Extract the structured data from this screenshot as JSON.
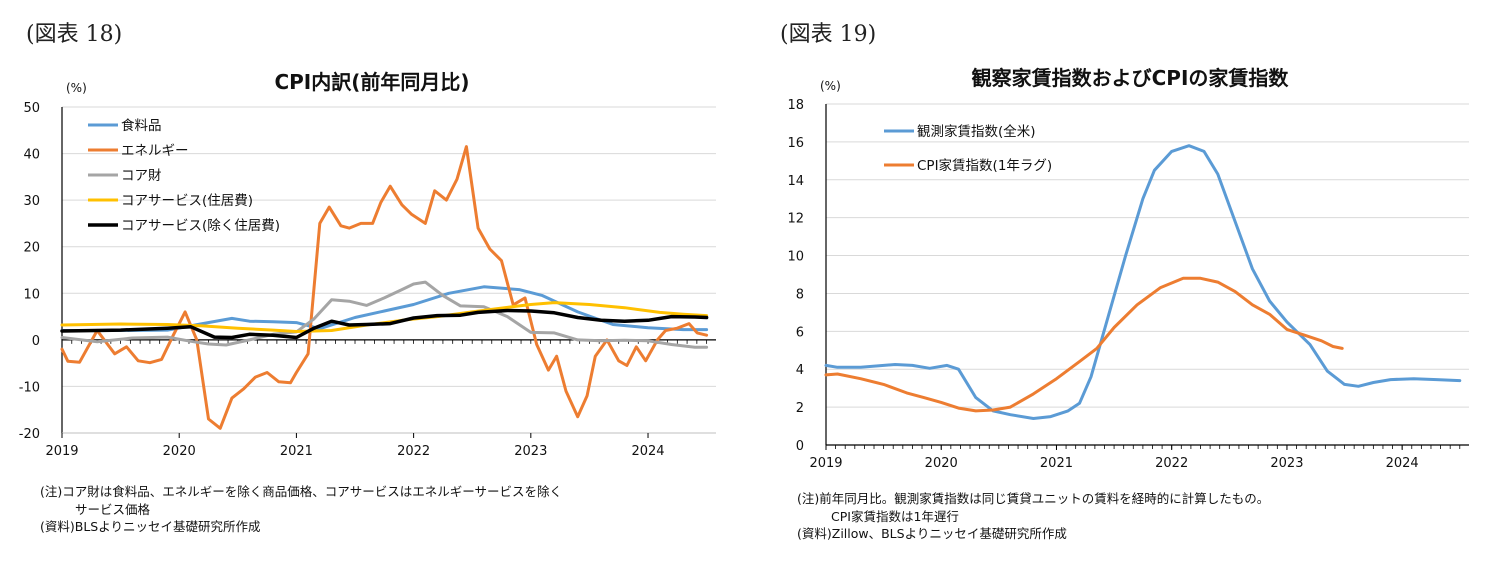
{
  "panels": [
    {
      "figure_label": "(図表 18)",
      "notes": [
        "(注)コア財は食料品、エネルギーを除く商品価格、コアサービスはエネルギーサービスを除く",
        "サービス価格",
        "(資料)BLSよりニッセイ基礎研究所作成"
      ]
    },
    {
      "figure_label": "(図表 19)",
      "notes": [
        "(注)前年同月比。観測家賃指数は同じ賃貸ユニットの賃料を経時的に計算したもの。",
        "CPI家賃指数は1年遅行",
        "(資料)Zillow、BLSよりニッセイ基礎研究所作成"
      ]
    }
  ],
  "chart_data": [
    {
      "type": "line",
      "title": "CPI内訳(前年同月比)",
      "ylabel": "(%)",
      "xlabel": "",
      "ylim": [
        -20,
        50
      ],
      "yticks": [
        -20,
        -10,
        0,
        10,
        20,
        30,
        40,
        50
      ],
      "xlim": [
        2019.0,
        2024.58
      ],
      "xticks": [
        2019,
        2020,
        2021,
        2022,
        2023,
        2024
      ],
      "xtick_labels": [
        "2019",
        "2020",
        "2021",
        "2022",
        "2023",
        "2024"
      ],
      "grid": "horizontal",
      "legend_position": "top-left",
      "series": [
        {
          "name": "食料品",
          "color": "#5b9bd5",
          "x": [
            2019.0,
            2019.5,
            2019.9,
            2020.2,
            2020.45,
            2020.6,
            2020.8,
            2021.0,
            2021.2,
            2021.5,
            2021.75,
            2022.0,
            2022.3,
            2022.6,
            2022.9,
            2023.1,
            2023.4,
            2023.7,
            2024.0,
            2024.3,
            2024.5
          ],
          "values": [
            2.0,
            2.0,
            2.1,
            3.5,
            4.6,
            4.0,
            3.9,
            3.7,
            2.4,
            4.8,
            6.2,
            7.6,
            10.0,
            11.4,
            10.8,
            9.5,
            6.0,
            3.3,
            2.6,
            2.2,
            2.2
          ]
        },
        {
          "name": "エネルギー",
          "color": "#ed7d31",
          "x": [
            2019.0,
            2019.05,
            2019.15,
            2019.3,
            2019.45,
            2019.55,
            2019.65,
            2019.75,
            2019.85,
            2019.95,
            2020.05,
            2020.15,
            2020.25,
            2020.35,
            2020.45,
            2020.55,
            2020.65,
            2020.75,
            2020.85,
            2020.95,
            2021.0,
            2021.1,
            2021.2,
            2021.28,
            2021.38,
            2021.45,
            2021.55,
            2021.65,
            2021.72,
            2021.8,
            2021.9,
            2021.98,
            2022.1,
            2022.18,
            2022.28,
            2022.37,
            2022.45,
            2022.55,
            2022.65,
            2022.75,
            2022.85,
            2022.95,
            2023.05,
            2023.15,
            2023.22,
            2023.3,
            2023.4,
            2023.48,
            2023.55,
            2023.65,
            2023.75,
            2023.82,
            2023.9,
            2023.98,
            2024.08,
            2024.15,
            2024.25,
            2024.35,
            2024.42,
            2024.5
          ],
          "values": [
            -2,
            -4.6,
            -4.8,
            2,
            -3,
            -1.5,
            -4.5,
            -4.9,
            -4.2,
            1,
            6,
            0,
            -17,
            -19,
            -12.5,
            -10.5,
            -8,
            -7,
            -9,
            -9.2,
            -7,
            -3,
            25,
            28.5,
            24.5,
            24,
            25,
            25,
            29.5,
            33,
            29,
            27,
            25,
            32,
            30,
            34.5,
            41.5,
            24,
            19.5,
            17,
            7.5,
            9,
            -1,
            -6.5,
            -3.5,
            -11,
            -16.5,
            -12,
            -3.5,
            0,
            -4.5,
            -5.5,
            -1.5,
            -4.5,
            0,
            2,
            2.5,
            3.5,
            1.5,
            1
          ]
        },
        {
          "name": "コア財",
          "color": "#a5a5a5",
          "x": [
            2019.0,
            2019.3,
            2019.6,
            2019.9,
            2020.1,
            2020.25,
            2020.4,
            2020.6,
            2020.8,
            2021.0,
            2021.15,
            2021.3,
            2021.45,
            2021.6,
            2021.75,
            2021.9,
            2022.0,
            2022.1,
            2022.25,
            2022.4,
            2022.6,
            2022.8,
            2023.0,
            2023.2,
            2023.4,
            2023.6,
            2023.8,
            2024.0,
            2024.2,
            2024.4,
            2024.5
          ],
          "values": [
            0.5,
            -0.4,
            0.4,
            0.6,
            -0.3,
            -0.9,
            -1.1,
            0.0,
            1.2,
            1.7,
            4.5,
            8.6,
            8.3,
            7.4,
            9.0,
            10.8,
            12.0,
            12.4,
            9.5,
            7.3,
            7.1,
            5.0,
            1.6,
            1.5,
            0.0,
            -0.2,
            -0.1,
            -0.2,
            -1.0,
            -1.6,
            -1.6
          ]
        },
        {
          "name": "コアサービス(住居費)",
          "color": "#ffc000",
          "x": [
            2019.0,
            2019.5,
            2019.9,
            2020.2,
            2020.5,
            2020.8,
            2021.0,
            2021.3,
            2021.6,
            2021.9,
            2022.2,
            2022.5,
            2022.8,
            2023.0,
            2023.2,
            2023.5,
            2023.8,
            2024.1,
            2024.3,
            2024.5
          ],
          "values": [
            3.2,
            3.4,
            3.3,
            3.0,
            2.5,
            2.1,
            1.8,
            2.0,
            3.2,
            4.2,
            5.0,
            6.0,
            7.0,
            7.6,
            8.0,
            7.6,
            6.9,
            5.9,
            5.5,
            5.2
          ]
        },
        {
          "name": "コアサービス(除く住居費)",
          "color": "#000000",
          "x": [
            2019.0,
            2019.5,
            2019.9,
            2020.1,
            2020.3,
            2020.45,
            2020.6,
            2020.8,
            2021.0,
            2021.15,
            2021.3,
            2021.45,
            2021.6,
            2021.8,
            2022.0,
            2022.2,
            2022.4,
            2022.55,
            2022.8,
            2023.0,
            2023.2,
            2023.4,
            2023.6,
            2023.8,
            2024.0,
            2024.2,
            2024.4,
            2024.5
          ],
          "values": [
            1.9,
            2.1,
            2.5,
            2.8,
            0.6,
            0.5,
            1.2,
            1.0,
            0.5,
            2.5,
            4.0,
            3.2,
            3.3,
            3.5,
            4.7,
            5.2,
            5.3,
            5.9,
            6.3,
            6.2,
            5.8,
            4.8,
            4.2,
            4.0,
            4.2,
            5.0,
            4.9,
            4.8
          ]
        }
      ]
    },
    {
      "type": "line",
      "title": "観察家賃指数およびCPIの家賃指数",
      "ylabel": "(%)",
      "xlabel": "",
      "ylim": [
        0,
        18
      ],
      "yticks": [
        0,
        2,
        4,
        6,
        8,
        10,
        12,
        14,
        16,
        18
      ],
      "xlim": [
        2019.0,
        2024.58
      ],
      "xticks": [
        2019,
        2020,
        2021,
        2022,
        2023,
        2024
      ],
      "xtick_labels": [
        "2019",
        "2020",
        "2021",
        "2022",
        "2023",
        "2024"
      ],
      "grid": "horizontal",
      "legend_position": "top-left",
      "series": [
        {
          "name": "観測家賃指数(全米)",
          "color": "#5b9bd5",
          "x": [
            2019.0,
            2019.1,
            2019.3,
            2019.6,
            2019.75,
            2019.9,
            2020.05,
            2020.15,
            2020.3,
            2020.45,
            2020.6,
            2020.8,
            2020.95,
            2021.1,
            2021.2,
            2021.3,
            2021.45,
            2021.6,
            2021.75,
            2021.85,
            2022.0,
            2022.15,
            2022.28,
            2022.4,
            2022.55,
            2022.7,
            2022.85,
            2023.0,
            2023.2,
            2023.35,
            2023.5,
            2023.62,
            2023.75,
            2023.9,
            2024.1,
            2024.3,
            2024.5
          ],
          "values": [
            4.2,
            4.1,
            4.1,
            4.25,
            4.2,
            4.05,
            4.2,
            4.0,
            2.5,
            1.8,
            1.6,
            1.4,
            1.5,
            1.8,
            2.2,
            3.6,
            6.8,
            10.0,
            13.0,
            14.5,
            15.5,
            15.8,
            15.5,
            14.3,
            11.8,
            9.3,
            7.6,
            6.5,
            5.3,
            3.9,
            3.2,
            3.1,
            3.3,
            3.45,
            3.5,
            3.45,
            3.4
          ]
        },
        {
          "name": "CPI家賃指数(1年ラグ)",
          "color": "#ed7d31",
          "x": [
            2019.0,
            2019.1,
            2019.3,
            2019.5,
            2019.7,
            2019.85,
            2020.0,
            2020.15,
            2020.3,
            2020.45,
            2020.6,
            2020.8,
            2021.0,
            2021.2,
            2021.35,
            2021.5,
            2021.7,
            2021.9,
            2022.1,
            2022.25,
            2022.4,
            2022.55,
            2022.7,
            2022.85,
            2023.0,
            2023.15,
            2023.3,
            2023.4,
            2023.48
          ],
          "values": [
            3.7,
            3.75,
            3.5,
            3.2,
            2.75,
            2.5,
            2.25,
            1.95,
            1.8,
            1.85,
            2.0,
            2.7,
            3.5,
            4.4,
            5.1,
            6.2,
            7.4,
            8.3,
            8.8,
            8.8,
            8.6,
            8.1,
            7.4,
            6.9,
            6.1,
            5.8,
            5.5,
            5.2,
            5.1
          ]
        }
      ]
    }
  ]
}
